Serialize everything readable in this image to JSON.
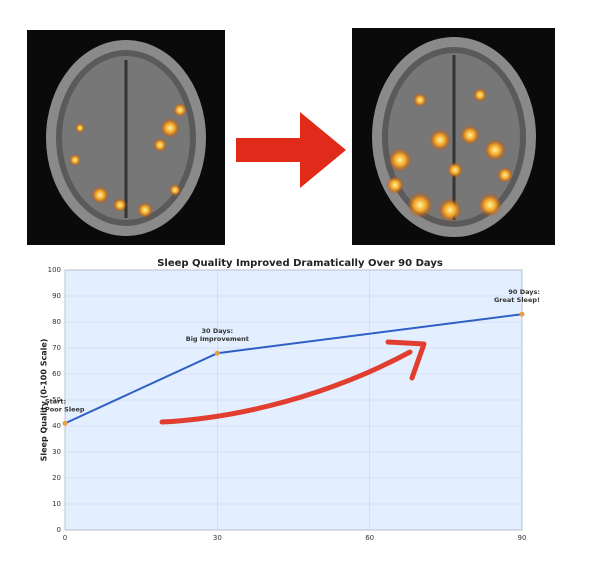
{
  "chart_data": {
    "type": "line",
    "title": "Sleep Quality Improved Dramatically Over 90 Days",
    "y_label": "Sleep Quality (0-100 Scale)",
    "x": [
      0,
      30,
      90
    ],
    "series": [
      {
        "name": "Sleep Quality",
        "color": "#2f5fc4",
        "values": [
          41,
          68,
          83
        ]
      }
    ],
    "annotations": [
      [
        "Start:",
        "Poor Sleep"
      ],
      [
        "30 Days:",
        "Big Improvement"
      ],
      [
        "90 Days:",
        "Great Sleep!"
      ]
    ],
    "xlim": [
      0,
      90
    ],
    "xticks": [
      0,
      30,
      60,
      90
    ],
    "ylim": [
      0,
      100
    ],
    "yticks": [
      0,
      10,
      20,
      30,
      40,
      50,
      60,
      70,
      80,
      90,
      100
    ],
    "grid": true,
    "marker_color": "#e8a040"
  }
}
